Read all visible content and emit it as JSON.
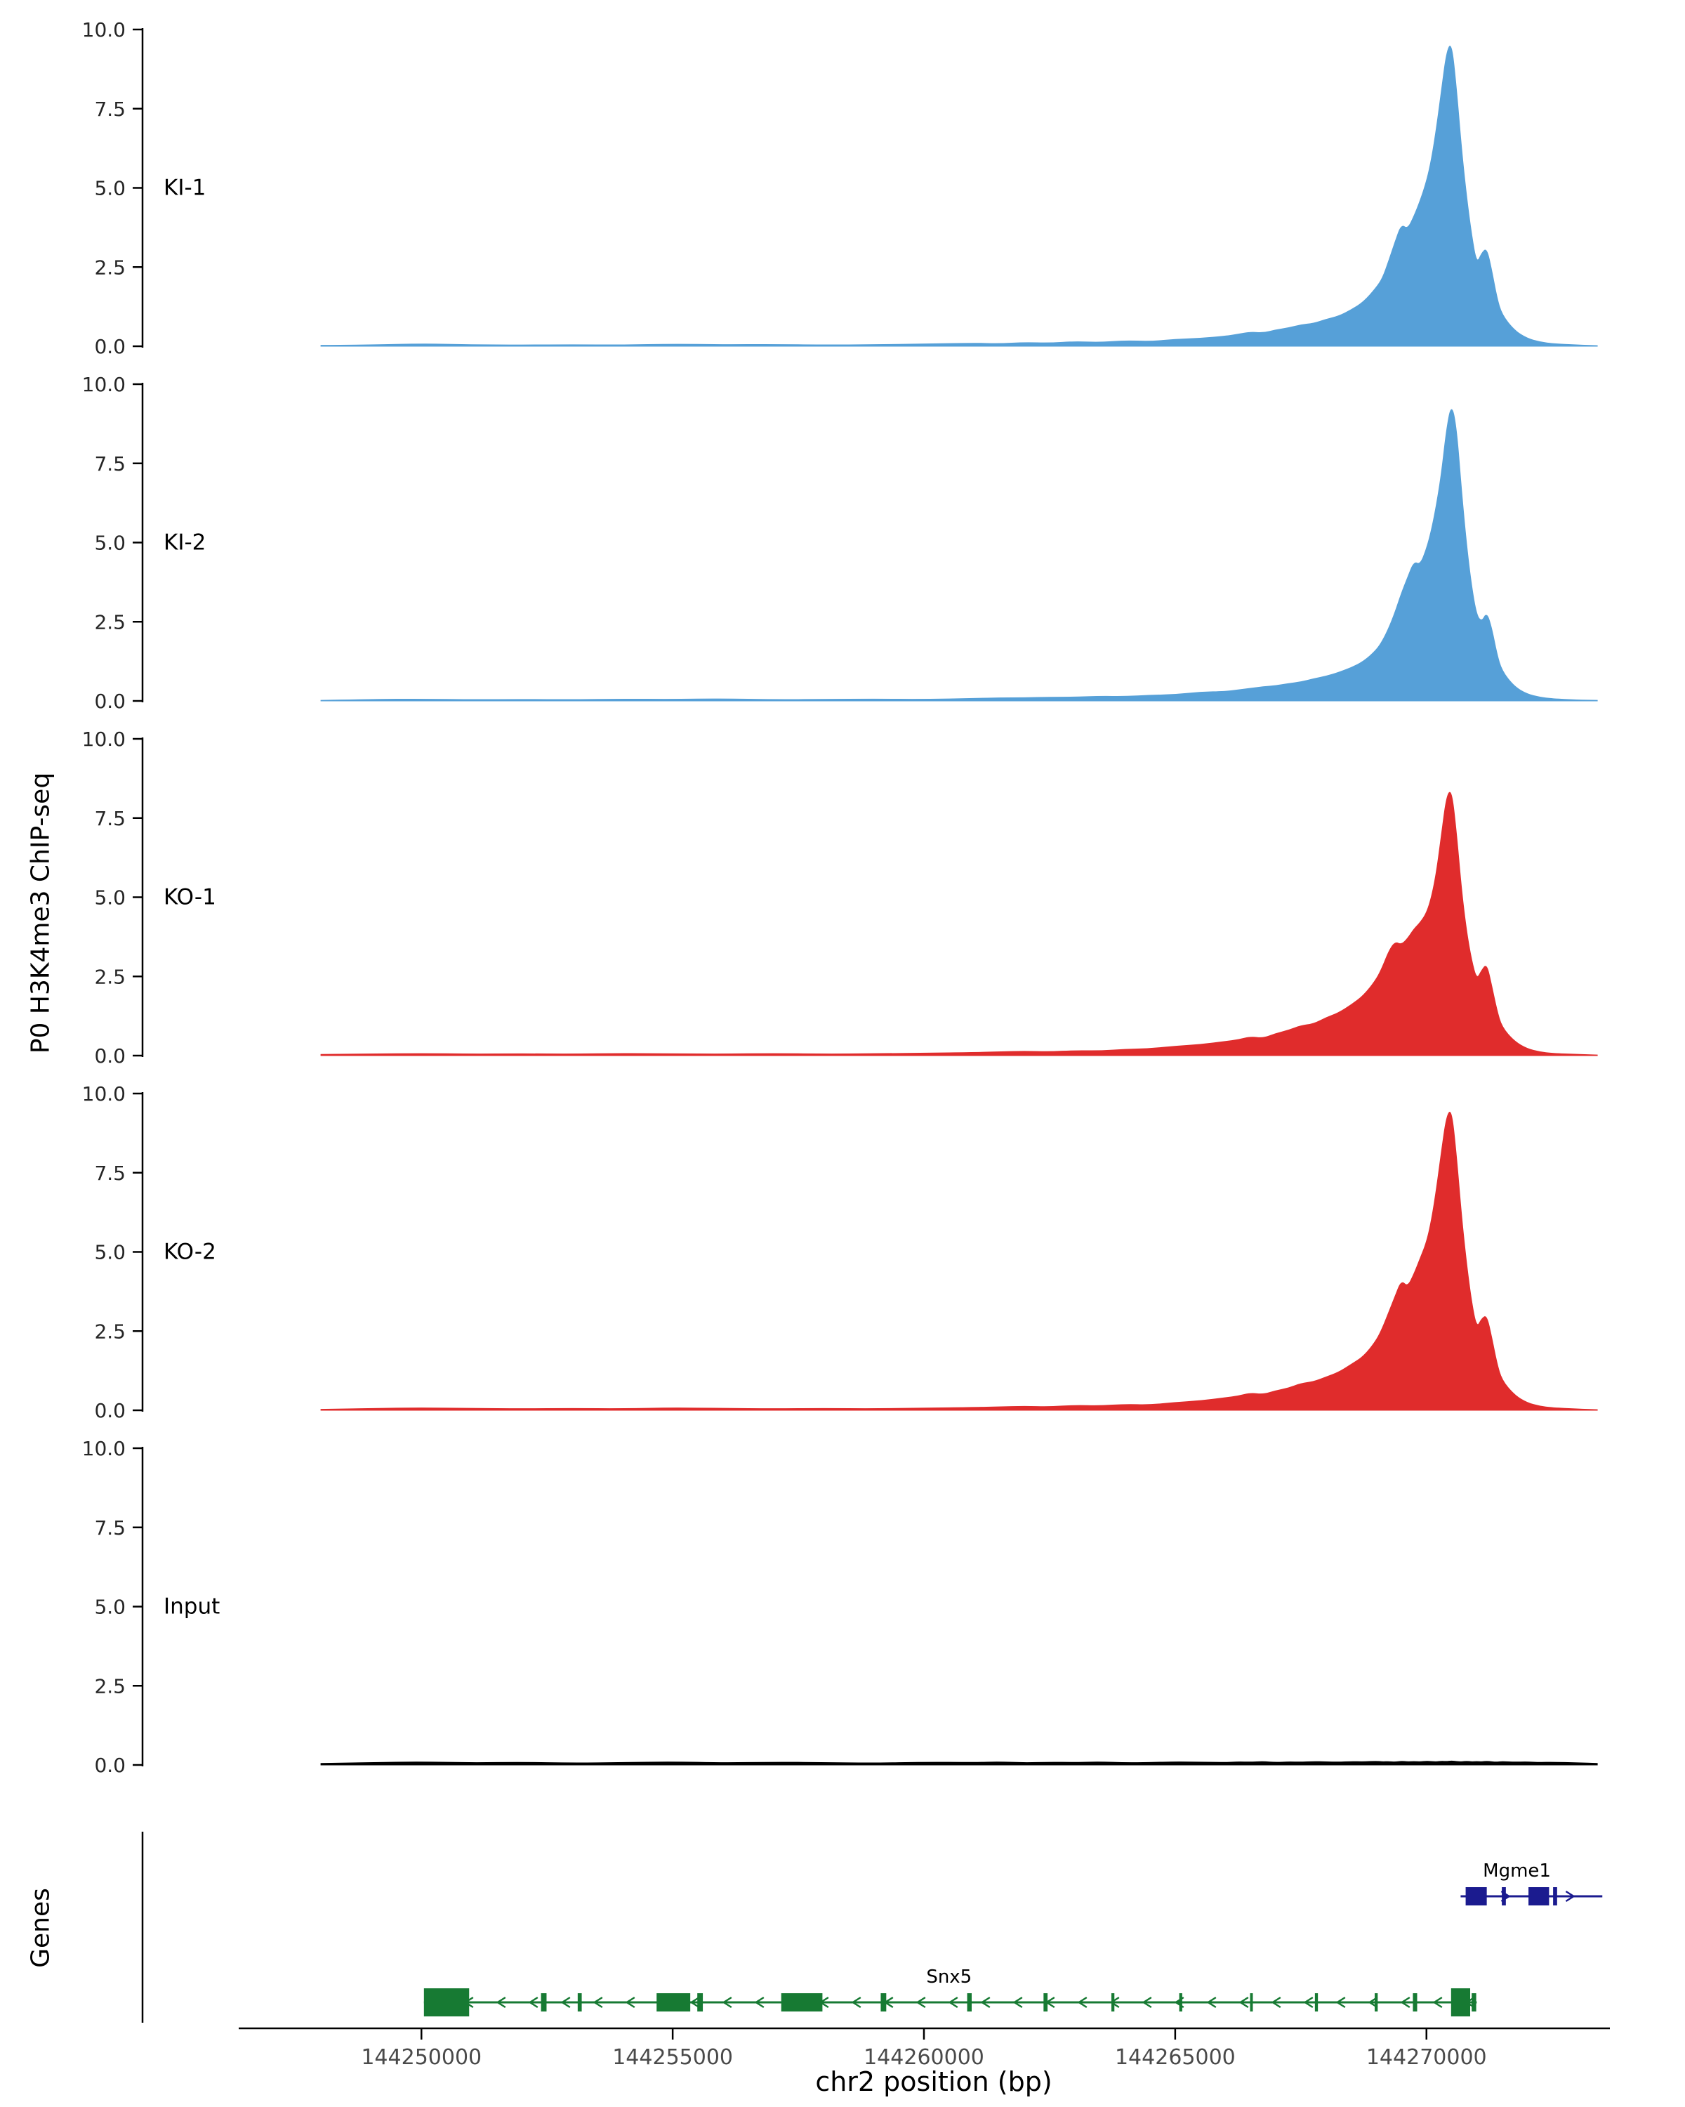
{
  "labels": {
    "y_axis": "P0 H3K4me3 ChIP-seq",
    "genes_axis": "Genes",
    "x_axis": "chr2 position (bp)"
  },
  "chart_data": {
    "type": "area",
    "title": "",
    "xlabel": "chr2 position (bp)",
    "ylabel": "P0 H3K4me3 ChIP-seq",
    "legend_position": "none",
    "grid": false,
    "x_range": [
      144244450,
      144273650
    ],
    "ylim": [
      0,
      10
    ],
    "y_ticks": [
      0.0,
      2.5,
      5.0,
      7.5,
      10.0
    ],
    "x_ticks": [
      144250000,
      144255000,
      144260000,
      144265000,
      144270000
    ],
    "x": [
      144248000,
      144249000,
      144250000,
      144251000,
      144252000,
      144253000,
      144254000,
      144255000,
      144256000,
      144257000,
      144258000,
      144259000,
      144260000,
      144261000,
      144261500,
      144262000,
      144262500,
      144263000,
      144263500,
      144264000,
      144264500,
      144265000,
      144265500,
      144266000,
      144266250,
      144266500,
      144266750,
      144267000,
      144267250,
      144267500,
      144267750,
      144268000,
      144268250,
      144268500,
      144268750,
      144269000,
      144269125,
      144269250,
      144269375,
      144269500,
      144269625,
      144269750,
      144269875,
      144270000,
      144270100,
      144270200,
      144270300,
      144270400,
      144270500,
      144270600,
      144270700,
      144270800,
      144270900,
      144271000,
      144271100,
      144271200,
      144271300,
      144271400,
      144271500,
      144271750,
      144272000,
      144272250,
      144272500,
      144273000,
      144273400
    ],
    "series": [
      {
        "name": "KI-1",
        "color": "#56a0d8",
        "values": [
          0.03,
          0.04,
          0.08,
          0.05,
          0.04,
          0.05,
          0.04,
          0.07,
          0.05,
          0.06,
          0.04,
          0.05,
          0.07,
          0.1,
          0.08,
          0.12,
          0.1,
          0.15,
          0.12,
          0.18,
          0.15,
          0.22,
          0.25,
          0.32,
          0.38,
          0.45,
          0.42,
          0.52,
          0.58,
          0.68,
          0.72,
          0.85,
          0.95,
          1.15,
          1.4,
          1.85,
          2.15,
          2.7,
          3.3,
          3.85,
          3.7,
          4.1,
          4.6,
          5.2,
          5.9,
          6.9,
          8.1,
          9.3,
          9.6,
          8.1,
          6.2,
          4.7,
          3.5,
          2.6,
          2.95,
          3.1,
          2.4,
          1.55,
          1.0,
          0.5,
          0.25,
          0.14,
          0.08,
          0.04,
          0.02
        ]
      },
      {
        "name": "KI-2",
        "color": "#56a0d8",
        "values": [
          0.02,
          0.05,
          0.06,
          0.04,
          0.05,
          0.04,
          0.06,
          0.05,
          0.07,
          0.04,
          0.05,
          0.06,
          0.05,
          0.08,
          0.1,
          0.1,
          0.12,
          0.12,
          0.15,
          0.14,
          0.18,
          0.2,
          0.28,
          0.3,
          0.35,
          0.4,
          0.45,
          0.48,
          0.55,
          0.6,
          0.7,
          0.78,
          0.9,
          1.05,
          1.25,
          1.6,
          1.9,
          2.3,
          2.8,
          3.4,
          3.9,
          4.4,
          4.3,
          4.8,
          5.4,
          6.2,
          7.2,
          8.6,
          9.4,
          8.6,
          6.6,
          4.9,
          3.6,
          2.7,
          2.5,
          2.8,
          2.3,
          1.5,
          0.95,
          0.45,
          0.22,
          0.12,
          0.07,
          0.03,
          0.02
        ]
      },
      {
        "name": "KO-1",
        "color": "#e02c2c",
        "values": [
          0.04,
          0.05,
          0.07,
          0.05,
          0.06,
          0.05,
          0.07,
          0.06,
          0.05,
          0.07,
          0.05,
          0.06,
          0.08,
          0.1,
          0.12,
          0.14,
          0.12,
          0.16,
          0.15,
          0.2,
          0.22,
          0.3,
          0.35,
          0.45,
          0.5,
          0.6,
          0.55,
          0.7,
          0.8,
          0.95,
          1.0,
          1.2,
          1.35,
          1.6,
          1.9,
          2.4,
          2.8,
          3.3,
          3.6,
          3.5,
          3.7,
          4.0,
          4.2,
          4.5,
          5.0,
          5.8,
          7.0,
          8.2,
          8.4,
          7.0,
          5.2,
          3.9,
          3.0,
          2.4,
          2.7,
          2.9,
          2.2,
          1.45,
          0.9,
          0.45,
          0.22,
          0.12,
          0.07,
          0.04,
          0.02
        ]
      },
      {
        "name": "KO-2",
        "color": "#e02c2c",
        "values": [
          0.03,
          0.06,
          0.08,
          0.06,
          0.05,
          0.06,
          0.05,
          0.08,
          0.06,
          0.05,
          0.06,
          0.05,
          0.07,
          0.09,
          0.11,
          0.13,
          0.11,
          0.16,
          0.14,
          0.19,
          0.17,
          0.25,
          0.3,
          0.4,
          0.45,
          0.55,
          0.5,
          0.62,
          0.7,
          0.85,
          0.9,
          1.05,
          1.2,
          1.45,
          1.7,
          2.2,
          2.6,
          3.1,
          3.6,
          4.1,
          3.9,
          4.3,
          4.8,
          5.3,
          6.0,
          7.0,
          8.2,
          9.3,
          9.5,
          8.0,
          6.1,
          4.6,
          3.4,
          2.6,
          2.9,
          3.0,
          2.3,
          1.5,
          0.95,
          0.48,
          0.24,
          0.13,
          0.08,
          0.04,
          0.02
        ]
      },
      {
        "name": "Input",
        "color": "#000000",
        "values": [
          0.05,
          0.08,
          0.1,
          0.07,
          0.09,
          0.06,
          0.08,
          0.1,
          0.07,
          0.09,
          0.08,
          0.06,
          0.09,
          0.08,
          0.1,
          0.07,
          0.09,
          0.08,
          0.1,
          0.07,
          0.08,
          0.1,
          0.09,
          0.08,
          0.1,
          0.09,
          0.11,
          0.08,
          0.1,
          0.09,
          0.11,
          0.1,
          0.09,
          0.11,
          0.1,
          0.12,
          0.1,
          0.11,
          0.09,
          0.12,
          0.1,
          0.11,
          0.1,
          0.12,
          0.11,
          0.1,
          0.12,
          0.11,
          0.13,
          0.11,
          0.1,
          0.12,
          0.1,
          0.11,
          0.1,
          0.12,
          0.1,
          0.09,
          0.11,
          0.09,
          0.1,
          0.08,
          0.09,
          0.07,
          0.05
        ]
      }
    ],
    "genes": [
      {
        "name": "Mgme1",
        "strand": "+",
        "color": "#1b1b8f",
        "start": 144270680,
        "end": 144273500,
        "label_pos": 144271800,
        "exons": [
          [
            144270780,
            144271200,
            0
          ],
          [
            144271500,
            144271580,
            0
          ],
          [
            144272030,
            144272440,
            0
          ],
          [
            144272520,
            144272600,
            0
          ]
        ]
      },
      {
        "name": "Snx5",
        "strand": "-",
        "color": "#177a33",
        "start": 144250050,
        "end": 144271000,
        "label_pos": 144260500,
        "exons": [
          [
            144250050,
            144250950,
            1
          ],
          [
            144252380,
            144252490,
            0
          ],
          [
            144253110,
            144253190,
            0
          ],
          [
            144254680,
            144255350,
            0
          ],
          [
            144255490,
            144255600,
            0
          ],
          [
            144257160,
            144257980,
            0
          ],
          [
            144259140,
            144259250,
            0
          ],
          [
            144260860,
            144260950,
            0
          ],
          [
            144262380,
            144262460,
            0
          ],
          [
            144263730,
            144263790,
            0
          ],
          [
            144265080,
            144265140,
            0
          ],
          [
            144266490,
            144266545,
            0
          ],
          [
            144267780,
            144267840,
            0
          ],
          [
            144268970,
            144269030,
            0
          ],
          [
            144269730,
            144269815,
            0
          ],
          [
            144270490,
            144270870,
            1
          ],
          [
            144270900,
            144270990,
            0
          ]
        ]
      }
    ]
  }
}
